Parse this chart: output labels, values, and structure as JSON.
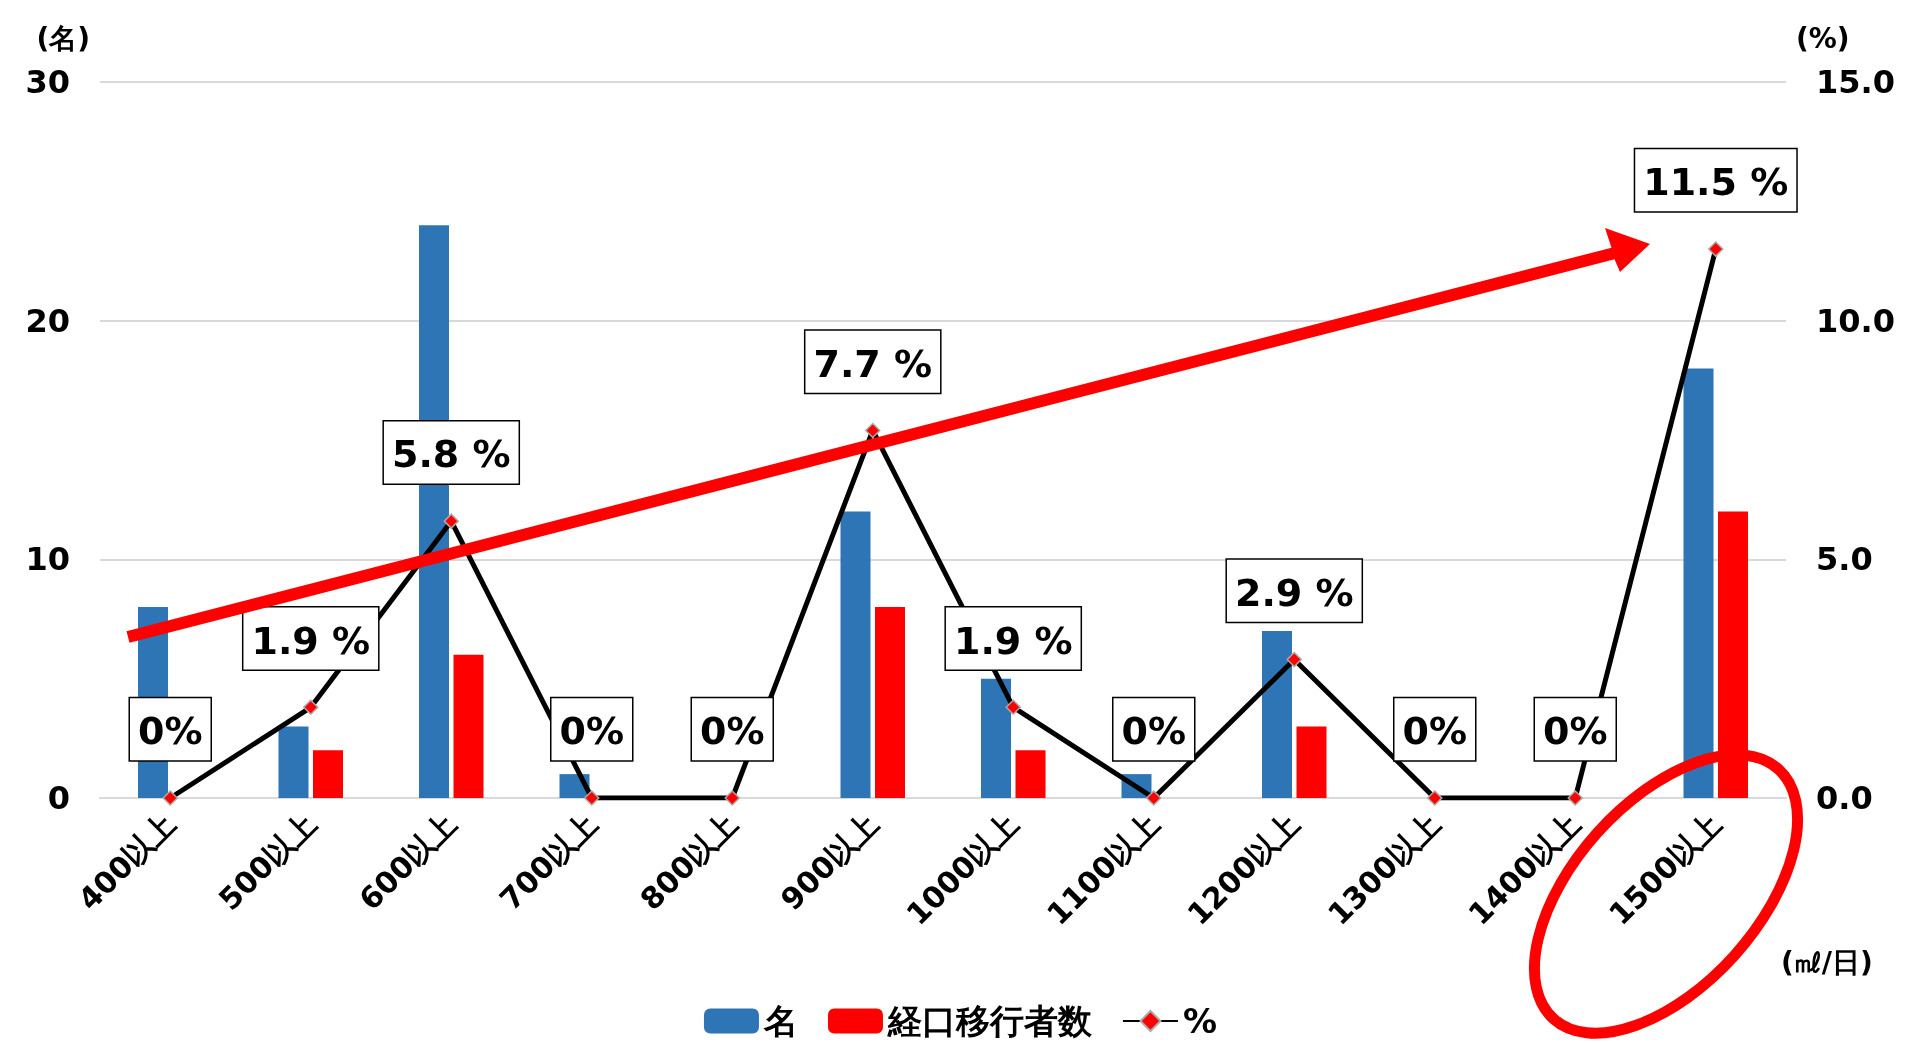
{
  "chart_data": {
    "type": "bar",
    "categories": [
      "400以上",
      "500以上",
      "600以上",
      "700以上",
      "800以上",
      "900以上",
      "1000以上",
      "1100以上",
      "1200以上",
      "1300以上",
      "1400以上",
      "1500以上"
    ],
    "xlabel": "(㎖/日)",
    "ylabel": "(名)",
    "y2label": "(%)",
    "ylim": [
      0,
      30
    ],
    "yticks": [
      0,
      10,
      20,
      30
    ],
    "y2lim": [
      0,
      15
    ],
    "y2ticks": [
      {
        "value": 0,
        "label": "0.0"
      },
      {
        "value": 5,
        "label": "5.0"
      },
      {
        "value": 10,
        "label": "10.0"
      },
      {
        "value": 15,
        "label": "15.0"
      }
    ],
    "grid": "y",
    "legend": "bottom",
    "marker": "diamond",
    "series": [
      {
        "name": "名",
        "color": "#2e75b6",
        "values": [
          8,
          3,
          24,
          1,
          0,
          12,
          5,
          1,
          7,
          0,
          0,
          18
        ]
      },
      {
        "name": "経口移行者数",
        "color": "#ff0000",
        "values": [
          0,
          2,
          6,
          0,
          0,
          8,
          2,
          0,
          3,
          0,
          0,
          12
        ]
      },
      {
        "name": "%",
        "type": "line",
        "axis": "y2",
        "color": "#000000",
        "values": [
          0,
          1.9,
          5.8,
          0,
          0,
          7.7,
          1.9,
          0,
          2.9,
          0,
          0,
          11.5
        ],
        "value_labels": [
          "0%",
          "1.9 %",
          "5.8 %",
          "0%",
          "0%",
          "7.7 %",
          "1.9 %",
          "0%",
          "2.9 %",
          "0%",
          "0%",
          "11.5 %"
        ]
      }
    ]
  }
}
